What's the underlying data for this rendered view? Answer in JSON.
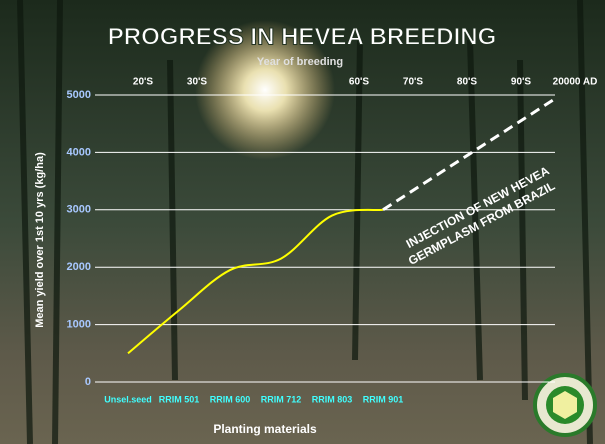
{
  "chart_data": {
    "type": "line",
    "title": "PROGRESS IN HEVEA BREEDING",
    "top_axis_label": "Year of breeding",
    "top_categories": [
      "20'S",
      "30'S",
      null,
      null,
      "60'S",
      "70'S",
      "80'S",
      "90'S",
      "20000 AD"
    ],
    "y_label": "Mean yield over 1st 10 yrs (kg/ha)",
    "x_label": "Planting materials",
    "categories": [
      "Unsel.seed",
      "RRIM 501",
      "RRIM 600",
      "RRIM 712",
      "RRIM 803",
      "RRIM 901"
    ],
    "ylim": [
      0,
      5000
    ],
    "yticks": [
      0,
      1000,
      2000,
      3000,
      4000,
      5000
    ],
    "grid": true,
    "series": [
      {
        "color": "#ffff00",
        "values": [
          500,
          1250,
          1950,
          2150,
          2900,
          3000
        ]
      },
      {
        "color": "#ffffff",
        "dashed": true,
        "x": [
          5,
          8.4
        ],
        "values": [
          3000,
          4950
        ]
      }
    ],
    "annotation": [
      "INJECTION OF NEW HEVEA",
      "GERMPLASM FROM BRAZIL"
    ]
  }
}
